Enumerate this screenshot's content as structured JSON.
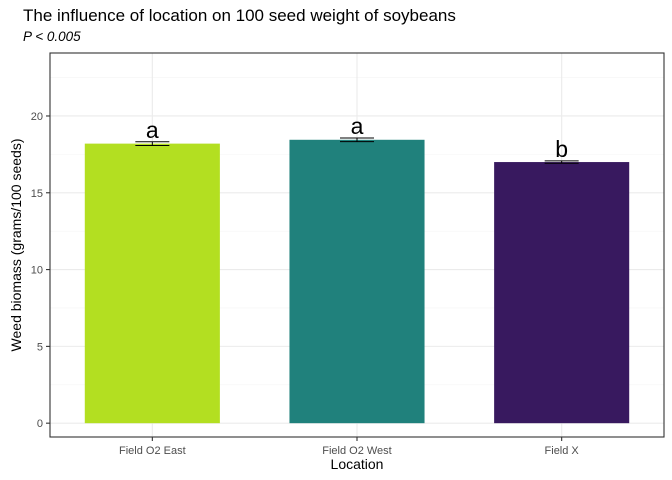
{
  "chart_data": {
    "type": "bar",
    "title": "The influence of location on 100 seed weight of soybeans",
    "subtitle": "P < 0.005",
    "xlabel": "Location",
    "ylabel": "Weed biomass (grams/100 seeds)",
    "categories": [
      "Field O2 East",
      "Field O2 West",
      "Field X"
    ],
    "values": [
      18.2,
      18.45,
      17.0
    ],
    "error": [
      0.12,
      0.12,
      0.08
    ],
    "letters": [
      "a",
      "a",
      "b"
    ],
    "colors": [
      "#b3df21",
      "#20817c",
      "#38195f"
    ],
    "ylim": [
      -0.9,
      24.1
    ],
    "yticks": [
      0,
      5,
      10,
      15,
      20
    ],
    "grid": true,
    "legend": "none",
    "theme": {
      "panel_border": "#333333",
      "grid_major": "#ebebeb",
      "grid_minor": "#f4f4f4",
      "tick_label": "#4d4d4d"
    }
  }
}
